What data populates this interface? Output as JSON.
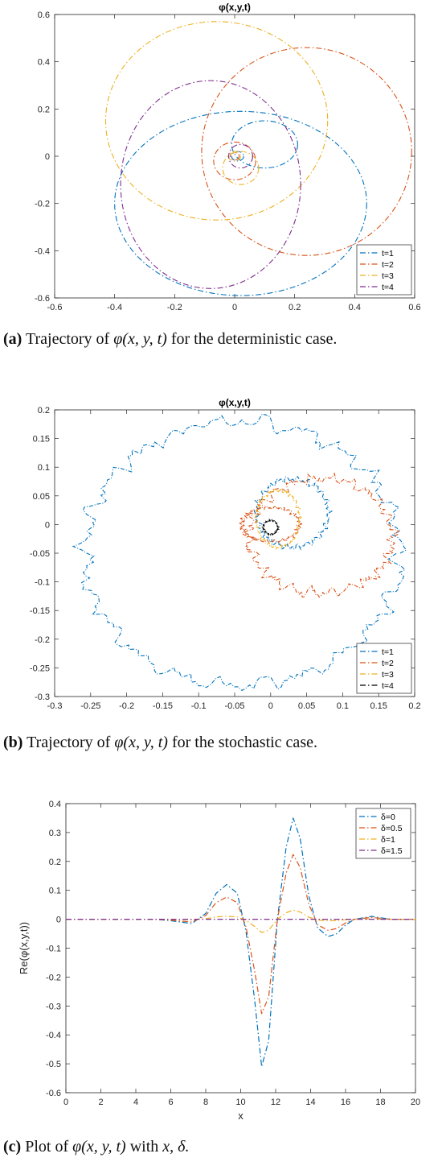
{
  "colors": {
    "s1": "#0072BD",
    "s2": "#D95319",
    "s3": "#EDB120",
    "s4a": "#7E2F8E",
    "s4b": "#000000",
    "axis": "#262626"
  },
  "captions": [
    {
      "letter": "(a)",
      "pre": "Trajectory of",
      "expr": "φ(x, y, t)",
      "post": "for the deterministic case."
    },
    {
      "letter": "(b)",
      "pre": "Trajectory of",
      "expr": "φ(x, y, t)",
      "post": "for the stochastic case."
    },
    {
      "letter": "(c)",
      "pre": "Plot of",
      "expr": "φ(x, y, t)",
      "mid": "with",
      "vars": "x, δ."
    }
  ],
  "chart_data": [
    {
      "type": "line",
      "title": "φ(x,y,t)",
      "xlabel": "",
      "ylabel": "",
      "xlim": [
        -0.6,
        0.6
      ],
      "ylim": [
        -0.6,
        0.6
      ],
      "xticks": [
        "-0.6",
        "-0.4",
        "-0.2",
        "0",
        "0.2",
        "0.4",
        "0.6"
      ],
      "yticks": [
        "-0.6",
        "-0.4",
        "-0.2",
        "0",
        "0.2",
        "0.4",
        "0.6"
      ],
      "legend": "bottom-right",
      "series": [
        {
          "name": "t=1",
          "color": "#0072BD",
          "kind": "ellipses",
          "ellipses": [
            [
              0.02,
              -0.2,
              0.42,
              0.39
            ],
            [
              0.1,
              0.05,
              0.11,
              0.1
            ],
            [
              0.01,
              0.0,
              0.02,
              0.02
            ]
          ]
        },
        {
          "name": "t=2",
          "color": "#D95319",
          "kind": "ellipses",
          "ellipses": [
            [
              0.24,
              0.02,
              0.35,
              0.44
            ],
            [
              0.0,
              -0.02,
              0.07,
              0.08
            ],
            [
              0.0,
              0.0,
              0.015,
              0.015
            ]
          ]
        },
        {
          "name": "t=3",
          "color": "#EDB120",
          "kind": "ellipses",
          "ellipses": [
            [
              -0.06,
              0.15,
              0.37,
              0.42
            ],
            [
              0.02,
              -0.05,
              0.06,
              0.07
            ],
            [
              0.0,
              0.0,
              0.02,
              0.02
            ]
          ]
        },
        {
          "name": "t=4",
          "color": "#7E2F8E",
          "kind": "ellipses",
          "ellipses": [
            [
              -0.08,
              -0.12,
              0.3,
              0.44
            ],
            [
              0.02,
              0.0,
              0.04,
              0.05
            ]
          ]
        }
      ]
    },
    {
      "type": "line",
      "title": "φ(x,y,t)",
      "xlabel": "",
      "ylabel": "",
      "xlim": [
        -0.3,
        0.2
      ],
      "ylim": [
        -0.3,
        0.2
      ],
      "xticks": [
        "-0.3",
        "-0.25",
        "-0.2",
        "-0.15",
        "-0.1",
        "-0.05",
        "0",
        "0.05",
        "0.1",
        "0.15",
        "0.2"
      ],
      "yticks": [
        "-0.3",
        "-0.25",
        "-0.2",
        "-0.15",
        "-0.1",
        "-0.05",
        "0",
        "0.05",
        "0.1",
        "0.15",
        "0.2"
      ],
      "legend": "bottom-right",
      "series": [
        {
          "name": "t=1",
          "color": "#0072BD",
          "kind": "rough",
          "ellipses": [
            [
              -0.04,
              -0.05,
              0.22,
              0.23,
              0.012
            ],
            [
              0.03,
              0.02,
              0.05,
              0.06,
              0.004
            ]
          ]
        },
        {
          "name": "t=2",
          "color": "#D95319",
          "kind": "rough",
          "ellipses": [
            [
              0.07,
              -0.02,
              0.1,
              0.1,
              0.008
            ],
            [
              0.0,
              0.0,
              0.04,
              0.03,
              0.003
            ]
          ]
        },
        {
          "name": "t=3",
          "color": "#EDB120",
          "kind": "rough",
          "ellipses": [
            [
              0.01,
              0.01,
              0.03,
              0.05,
              0.003
            ]
          ]
        },
        {
          "name": "t=4",
          "color": "#000000",
          "kind": "rough",
          "ellipses": [
            [
              0.0,
              -0.005,
              0.01,
              0.012,
              0.001
            ]
          ]
        }
      ]
    },
    {
      "type": "line",
      "title": "",
      "xlabel": "x",
      "ylabel": "Re(φ(x,y,t))",
      "xlim": [
        0,
        20
      ],
      "ylim": [
        -0.6,
        0.4
      ],
      "xticks": [
        "0",
        "2",
        "4",
        "6",
        "8",
        "10",
        "12",
        "14",
        "16",
        "18",
        "20"
      ],
      "yticks": [
        "-0.6",
        "-0.5",
        "-0.4",
        "-0.3",
        "-0.2",
        "-0.1",
        "0",
        "0.1",
        "0.2",
        "0.3",
        "0.4"
      ],
      "legend": "top-right",
      "series": [
        {
          "name": "δ=0",
          "color": "#0072BD",
          "scale": 1.0
        },
        {
          "name": "δ=0.5",
          "color": "#D95319",
          "scale": 0.64
        },
        {
          "name": "δ=1",
          "color": "#EDB120",
          "scale": 0.09
        },
        {
          "name": "δ=1.5",
          "color": "#7E2F8E",
          "scale": 0.0
        }
      ],
      "x": [
        0,
        4,
        5,
        6,
        6.6,
        7.2,
        8,
        8.6,
        9.2,
        9.8,
        10.3,
        10.8,
        11.2,
        11.6,
        12.1,
        12.6,
        13.0,
        13.4,
        13.9,
        14.4,
        15.0,
        15.5,
        16,
        16.5,
        17,
        17.5,
        18,
        18.6,
        19.2,
        20
      ],
      "values_delta0": [
        0,
        0,
        0,
        -0.005,
        -0.01,
        -0.015,
        0.02,
        0.09,
        0.12,
        0.09,
        -0.04,
        -0.28,
        -0.51,
        -0.42,
        0.0,
        0.25,
        0.35,
        0.28,
        0.08,
        -0.03,
        -0.06,
        -0.05,
        -0.02,
        0.0,
        0.005,
        0.01,
        0.005,
        0.0,
        0.0,
        0.0
      ]
    }
  ]
}
